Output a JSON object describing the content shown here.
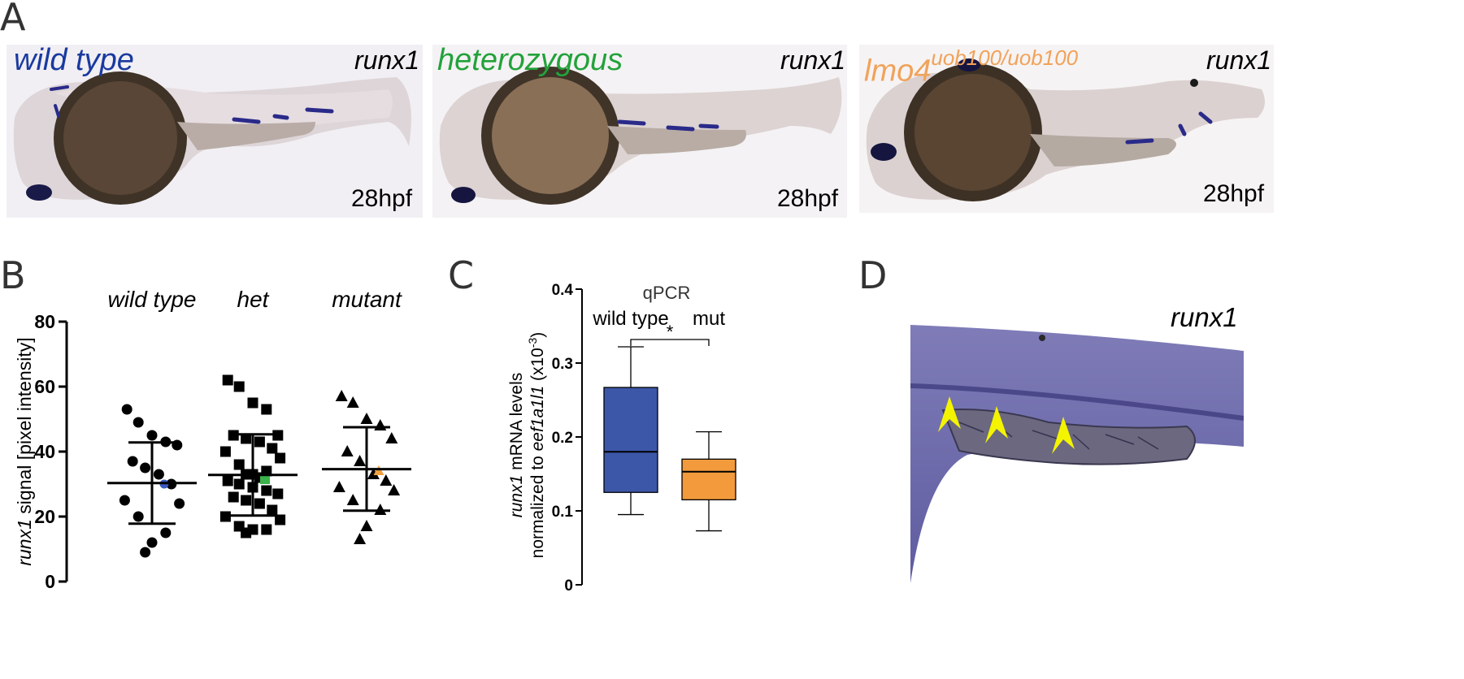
{
  "panels": {
    "a": {
      "letter": "A",
      "images": [
        {
          "genotype": "wild type",
          "genotype_color": "#1a3aa0",
          "gene": "runx1",
          "stage": "28hpf"
        },
        {
          "genotype": "heterozygous",
          "genotype_color": "#22a23a",
          "gene": "runx1",
          "stage": "28hpf"
        },
        {
          "genotype": "lmo4",
          "genotype_sup": "uob100/uob100",
          "genotype_color": "#f0a35a",
          "gene": "runx1",
          "stage": "28hpf"
        }
      ]
    },
    "b": {
      "letter": "B"
    },
    "c": {
      "letter": "C"
    },
    "d": {
      "letter": "D",
      "gene": "runx1",
      "arrow_color": "#f4f400"
    }
  },
  "chart_data": [
    {
      "type": "scatter",
      "ylabel_italic": "runx1",
      "ylabel_rest": " signal [pixel intensity]",
      "ylim": [
        0,
        80
      ],
      "yticks": [
        0,
        20,
        40,
        60,
        80
      ],
      "groups": [
        {
          "name": "wild type",
          "marker": "circle",
          "values": [
            53,
            49,
            45,
            43,
            42,
            37,
            35,
            33,
            30,
            25,
            24,
            20,
            15,
            12,
            9
          ],
          "highlight": 30,
          "highlight_color": "#3a5bbf",
          "mean": 30.3,
          "sd_low": 17.8,
          "sd_high": 42.8
        },
        {
          "name": "het",
          "marker": "square",
          "values": [
            62,
            60,
            55,
            53,
            45,
            45,
            44,
            43,
            41,
            40,
            38,
            36,
            34,
            33,
            33,
            32,
            31,
            30,
            29,
            28,
            27,
            26,
            25,
            24,
            22,
            20,
            19,
            17,
            16,
            16,
            15
          ],
          "highlight": 31.5,
          "highlight_color": "#3cb24a",
          "mean": 32.8,
          "sd_low": 20.3,
          "sd_high": 45.3
        },
        {
          "name": "mutant",
          "marker": "triangle",
          "values": [
            57,
            55,
            50,
            48,
            44,
            40,
            37,
            33,
            31,
            29,
            28,
            25,
            22,
            17,
            13
          ],
          "highlight": 34,
          "highlight_color": "#f0a040",
          "mean": 34.6,
          "sd_low": 21.8,
          "sd_high": 47.5
        }
      ]
    },
    {
      "type": "box",
      "title": "qPCR",
      "ylabel_line1_italic": "runx1",
      "ylabel_line1_rest": " mRNA levels",
      "ylabel_line2_prefix": "normalized to ",
      "ylabel_line2_italic": "eef1a1l1",
      "ylabel_line2_suffix": " (x10",
      "ylabel_line2_exp": "-3",
      "ylabel_line2_close": ")",
      "ylim": [
        0,
        0.4
      ],
      "yticks": [
        "0",
        "0.1",
        "0.2",
        "0.3",
        "0.4"
      ],
      "significance": "*",
      "boxes": [
        {
          "name": "wild type",
          "color": "#3d57a8",
          "min": 0.095,
          "q1": 0.125,
          "median": 0.18,
          "q3": 0.267,
          "max": 0.322
        },
        {
          "name": "mut",
          "color": "#f29a3c",
          "min": 0.073,
          "q1": 0.115,
          "median": 0.153,
          "q3": 0.17,
          "max": 0.207
        }
      ]
    }
  ]
}
